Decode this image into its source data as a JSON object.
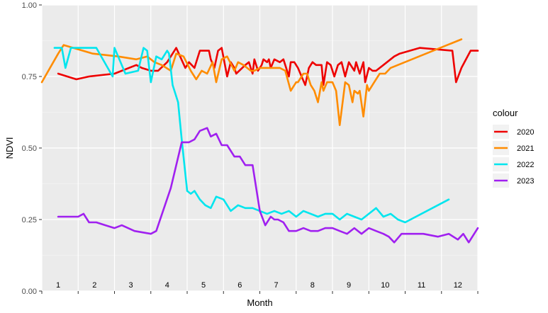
{
  "chart_data": {
    "type": "line",
    "xlabel": "Month",
    "ylabel": "NDVI",
    "ylim": [
      0,
      1
    ],
    "xlim": [
      0,
      12
    ],
    "y_ticks": [
      "0.00",
      "0.25",
      "0.50",
      "0.75",
      "1.00"
    ],
    "x_tick_labels": [
      "1",
      "2",
      "3",
      "4",
      "5",
      "6",
      "7",
      "8",
      "9",
      "10",
      "11",
      "12"
    ],
    "grid": true,
    "background": "#ebebeb",
    "legend": {
      "title": "colour",
      "position": "right"
    },
    "series": [
      {
        "name": "2020",
        "color": "#ee0000",
        "x": [
          0.45,
          0.95,
          1.3,
          2.0,
          2.6,
          2.75,
          3.0,
          3.2,
          3.45,
          3.7,
          3.95,
          4.05,
          4.2,
          4.35,
          4.6,
          4.65,
          4.75,
          4.85,
          4.95,
          5.1,
          5.2,
          5.3,
          5.35,
          5.6,
          5.7,
          5.8,
          5.85,
          5.95,
          6.05,
          6.1,
          6.2,
          6.25,
          6.3,
          6.4,
          6.55,
          6.65,
          6.8,
          6.85,
          6.95,
          7.05,
          7.15,
          7.25,
          7.35,
          7.45,
          7.55,
          7.7,
          7.75,
          7.85,
          7.95,
          8.05,
          8.15,
          8.25,
          8.35,
          8.45,
          8.6,
          8.65,
          8.75,
          8.85,
          8.9,
          9.0,
          9.1,
          9.2,
          9.4,
          9.7,
          9.85,
          10.4,
          11.3,
          11.4,
          11.55,
          11.8,
          12.0
        ],
        "y": [
          0.76,
          0.74,
          0.75,
          0.76,
          0.79,
          0.78,
          0.77,
          0.77,
          0.8,
          0.85,
          0.78,
          0.8,
          0.78,
          0.84,
          0.84,
          0.81,
          0.78,
          0.84,
          0.85,
          0.75,
          0.8,
          0.78,
          0.76,
          0.79,
          0.8,
          0.76,
          0.81,
          0.77,
          0.79,
          0.81,
          0.8,
          0.81,
          0.78,
          0.81,
          0.8,
          0.81,
          0.75,
          0.8,
          0.8,
          0.78,
          0.75,
          0.72,
          0.78,
          0.8,
          0.79,
          0.79,
          0.72,
          0.8,
          0.79,
          0.75,
          0.79,
          0.8,
          0.75,
          0.8,
          0.77,
          0.8,
          0.76,
          0.8,
          0.73,
          0.78,
          0.77,
          0.77,
          0.79,
          0.82,
          0.83,
          0.85,
          0.84,
          0.73,
          0.78,
          0.84,
          0.84
        ]
      },
      {
        "name": "2021",
        "color": "#ff8c00",
        "x": [
          0.0,
          0.45,
          0.6,
          1.4,
          2.1,
          2.6,
          2.9,
          3.1,
          3.3,
          3.55,
          3.7,
          3.9,
          4.1,
          4.25,
          4.4,
          4.55,
          4.7,
          4.8,
          4.95,
          5.1,
          5.3,
          5.4,
          5.55,
          5.75,
          5.85,
          6.0,
          6.2,
          6.4,
          6.55,
          6.7,
          6.85,
          7.0,
          7.05,
          7.2,
          7.3,
          7.4,
          7.5,
          7.6,
          7.7,
          7.75,
          7.85,
          8.0,
          8.1,
          8.2,
          8.35,
          8.45,
          8.55,
          8.6,
          8.7,
          8.75,
          8.85,
          8.95,
          9.0,
          9.15,
          9.3,
          9.45,
          9.6,
          11.55
        ],
        "y": [
          0.73,
          0.83,
          0.86,
          0.83,
          0.82,
          0.81,
          0.82,
          0.8,
          0.79,
          0.77,
          0.83,
          0.82,
          0.77,
          0.74,
          0.77,
          0.76,
          0.8,
          0.73,
          0.81,
          0.82,
          0.77,
          0.8,
          0.79,
          0.77,
          0.77,
          0.78,
          0.78,
          0.78,
          0.78,
          0.77,
          0.7,
          0.73,
          0.73,
          0.76,
          0.76,
          0.72,
          0.7,
          0.66,
          0.73,
          0.7,
          0.73,
          0.73,
          0.7,
          0.58,
          0.73,
          0.72,
          0.66,
          0.7,
          0.69,
          0.7,
          0.61,
          0.72,
          0.7,
          0.73,
          0.76,
          0.76,
          0.78,
          0.88
        ]
      },
      {
        "name": "2022",
        "color": "#00e5ee",
        "x": [
          0.35,
          0.55,
          0.65,
          0.8,
          1.15,
          1.5,
          1.95,
          2.0,
          2.3,
          2.65,
          2.8,
          2.9,
          3.0,
          3.1,
          3.15,
          3.3,
          3.45,
          3.5,
          3.6,
          3.75,
          3.85,
          4.0,
          4.1,
          4.2,
          4.35,
          4.5,
          4.65,
          4.8,
          5.0,
          5.2,
          5.4,
          5.6,
          5.8,
          6.0,
          6.2,
          6.4,
          6.6,
          6.8,
          7.0,
          7.2,
          7.4,
          7.6,
          7.8,
          8.0,
          8.2,
          8.4,
          8.6,
          8.8,
          9.0,
          9.2,
          9.4,
          9.6,
          9.8,
          10.0,
          11.2
        ],
        "y": [
          0.85,
          0.85,
          0.78,
          0.85,
          0.85,
          0.85,
          0.75,
          0.85,
          0.76,
          0.77,
          0.85,
          0.84,
          0.73,
          0.79,
          0.82,
          0.81,
          0.84,
          0.83,
          0.72,
          0.66,
          0.53,
          0.35,
          0.34,
          0.35,
          0.32,
          0.3,
          0.29,
          0.33,
          0.32,
          0.28,
          0.3,
          0.29,
          0.29,
          0.28,
          0.27,
          0.28,
          0.27,
          0.28,
          0.26,
          0.28,
          0.27,
          0.26,
          0.27,
          0.27,
          0.25,
          0.27,
          0.26,
          0.25,
          0.27,
          0.29,
          0.26,
          0.27,
          0.25,
          0.24,
          0.32
        ]
      },
      {
        "name": "2023",
        "color": "#a020f0",
        "x": [
          0.45,
          1.0,
          1.15,
          1.3,
          1.5,
          1.75,
          2.0,
          2.2,
          2.55,
          3.0,
          3.15,
          3.55,
          3.85,
          4.05,
          4.2,
          4.35,
          4.55,
          4.65,
          4.8,
          4.95,
          5.1,
          5.3,
          5.45,
          5.6,
          5.8,
          5.9,
          6.0,
          6.15,
          6.3,
          6.4,
          6.5,
          6.65,
          6.8,
          7.0,
          7.2,
          7.4,
          7.6,
          7.8,
          8.0,
          8.2,
          8.4,
          8.6,
          8.8,
          9.0,
          9.2,
          9.4,
          9.55,
          9.7,
          9.9,
          10.2,
          10.5,
          10.9,
          11.2,
          11.45,
          11.6,
          11.75,
          12.0
        ],
        "y": [
          0.26,
          0.26,
          0.27,
          0.24,
          0.24,
          0.23,
          0.22,
          0.23,
          0.21,
          0.2,
          0.21,
          0.36,
          0.52,
          0.52,
          0.53,
          0.56,
          0.57,
          0.54,
          0.55,
          0.51,
          0.51,
          0.47,
          0.47,
          0.44,
          0.44,
          0.36,
          0.28,
          0.23,
          0.26,
          0.25,
          0.25,
          0.24,
          0.21,
          0.21,
          0.22,
          0.21,
          0.21,
          0.22,
          0.22,
          0.21,
          0.2,
          0.22,
          0.2,
          0.22,
          0.21,
          0.2,
          0.19,
          0.17,
          0.2,
          0.2,
          0.2,
          0.19,
          0.2,
          0.18,
          0.2,
          0.17,
          0.22
        ]
      }
    ]
  }
}
